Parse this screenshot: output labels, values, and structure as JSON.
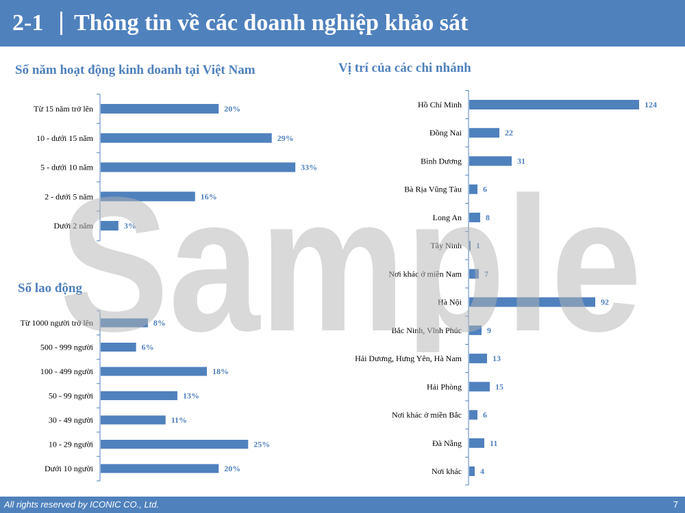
{
  "header": {
    "number": "2-1",
    "title": "Thông tin về các doanh nghiệp khảo sát"
  },
  "watermark": "Sample",
  "footer": {
    "copyright": "All rights reserved by ICONIC CO., Ltd.",
    "page": "7"
  },
  "colors": {
    "bar": "#4f81bd",
    "axis": "#4f81bd",
    "header": "#4f81bd",
    "label": "#4f81bd"
  },
  "chart_data": [
    {
      "type": "bar",
      "orientation": "horizontal",
      "title": "Số năm hoạt động kinh doanh tại Việt Nam",
      "categories": [
        "Từ 15 năm trở lên",
        "10 - dưới 15 năm",
        "5 - dưới 10 năm",
        "2 - dưới 5 năm",
        "Dưới 2 năm"
      ],
      "values": [
        20,
        29,
        33,
        16,
        3
      ],
      "value_labels": [
        "20%",
        "29%",
        "33%",
        "16%",
        "3%"
      ],
      "unit": "%",
      "xlim": [
        0,
        36
      ],
      "grid": false
    },
    {
      "type": "bar",
      "orientation": "horizontal",
      "title": "Số lao động",
      "categories": [
        "Từ 1000 người trở lên",
        "500 - 999 người",
        "100 - 499 người",
        "50 - 99 người",
        "30 - 49 người",
        "10 - 29 người",
        "Dưới 10 người"
      ],
      "values": [
        8,
        6,
        18,
        13,
        11,
        25,
        20
      ],
      "value_labels": [
        "8%",
        "6%",
        "18%",
        "13%",
        "11%",
        "25%",
        "20%"
      ],
      "unit": "%",
      "xlim": [
        0,
        36
      ],
      "grid": false
    },
    {
      "type": "bar",
      "orientation": "horizontal",
      "title": "Vị trí của các chi nhánh",
      "categories": [
        "Hồ Chí Minh",
        "Đồng Nai",
        "Bình Dương",
        "Bà Rịa Vũng Tàu",
        "Long An",
        "Tây Ninh",
        "Nơi khác ở miền Nam",
        "Hà Nội",
        "Bắc Ninh, Vĩnh Phúc",
        "Hải Dương, Hưng Yên, Hà Nam",
        "Hải Phòng",
        "Nơi khác ở miền Bắc",
        "Đà Nẵng",
        "Nơi khác"
      ],
      "values": [
        124,
        22,
        31,
        6,
        8,
        1,
        7,
        92,
        9,
        13,
        15,
        6,
        11,
        4
      ],
      "value_labels": [
        "124",
        "22",
        "31",
        "6",
        "8",
        "1",
        "7",
        "92",
        "9",
        "13",
        "15",
        "6",
        "11",
        "4"
      ],
      "xlim": [
        0,
        124
      ],
      "grid": false
    }
  ]
}
